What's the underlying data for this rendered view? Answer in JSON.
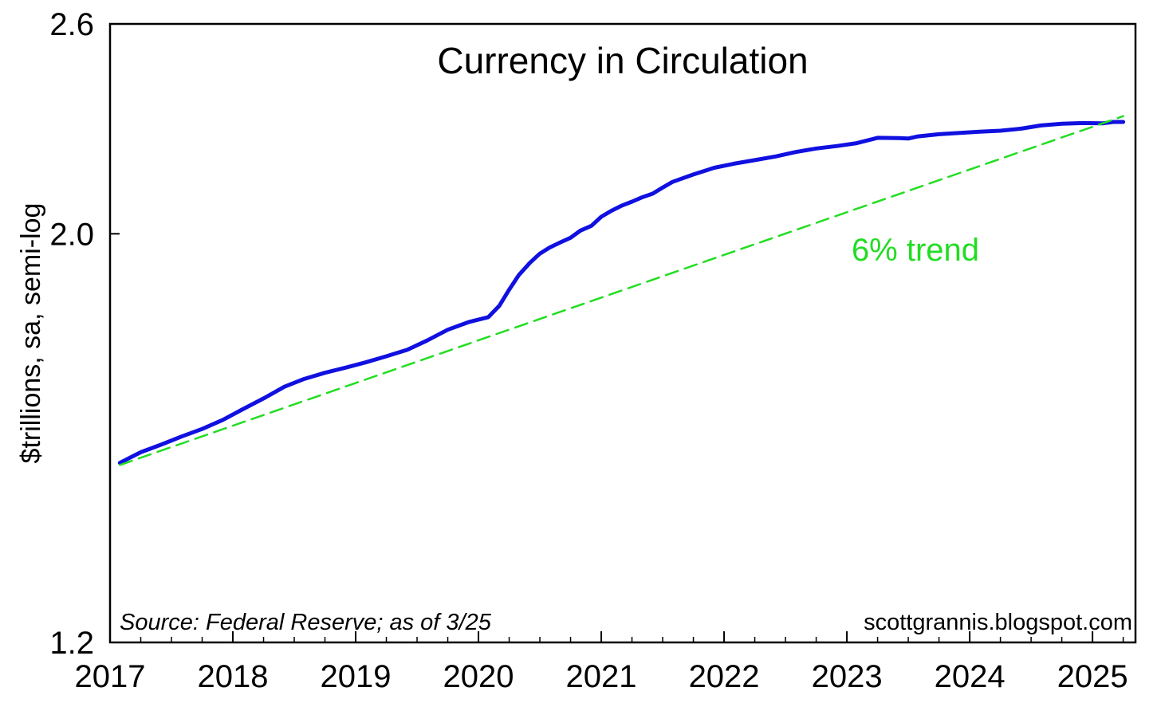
{
  "chart_data": {
    "type": "line",
    "title": "Currency in Circulation",
    "ylabel": "$trillions, sa, semi-log",
    "xlabel": "",
    "y_scale": "log",
    "ylim": [
      1.2,
      2.6
    ],
    "xlim": [
      2017.0,
      2025.35
    ],
    "y_ticks": [
      1.2,
      2.0,
      2.6
    ],
    "y_tick_labels": [
      "1.2",
      "2.0",
      "2.6"
    ],
    "x_ticks": [
      2017,
      2018,
      2019,
      2020,
      2021,
      2022,
      2023,
      2024,
      2025
    ],
    "x_tick_labels": [
      "2017",
      "2018",
      "2019",
      "2020",
      "2021",
      "2022",
      "2023",
      "2024",
      "2025"
    ],
    "grid": false,
    "source_note": "Source: Federal Reserve; as of 3/25",
    "credit": "scottgrannis.blogspot.com",
    "series": [
      {
        "color": "#1010e0",
        "style": "solid",
        "x": [
          2017.08,
          2017.25,
          2017.42,
          2017.58,
          2017.75,
          2017.92,
          2018.08,
          2018.25,
          2018.42,
          2018.58,
          2018.75,
          2018.92,
          2019.08,
          2019.25,
          2019.42,
          2019.58,
          2019.75,
          2019.92,
          2020.08,
          2020.17,
          2020.25,
          2020.33,
          2020.42,
          2020.5,
          2020.58,
          2020.67,
          2020.75,
          2020.83,
          2020.92,
          2021.0,
          2021.08,
          2021.17,
          2021.25,
          2021.33,
          2021.42,
          2021.5,
          2021.58,
          2021.75,
          2021.92,
          2022.08,
          2022.25,
          2022.42,
          2022.58,
          2022.75,
          2022.92,
          2023.08,
          2023.25,
          2023.42,
          2023.5,
          2023.58,
          2023.75,
          2023.92,
          2024.08,
          2024.25,
          2024.42,
          2024.58,
          2024.75,
          2024.92,
          2025.08,
          2025.17,
          2025.25
        ],
        "y": [
          1.502,
          1.522,
          1.537,
          1.552,
          1.567,
          1.585,
          1.606,
          1.628,
          1.652,
          1.668,
          1.681,
          1.692,
          1.703,
          1.716,
          1.73,
          1.75,
          1.774,
          1.791,
          1.802,
          1.828,
          1.865,
          1.9,
          1.929,
          1.951,
          1.966,
          1.979,
          1.99,
          2.008,
          2.02,
          2.043,
          2.058,
          2.072,
          2.082,
          2.093,
          2.103,
          2.119,
          2.134,
          2.154,
          2.172,
          2.183,
          2.193,
          2.203,
          2.215,
          2.225,
          2.232,
          2.24,
          2.255,
          2.254,
          2.253,
          2.259,
          2.265,
          2.269,
          2.272,
          2.275,
          2.281,
          2.29,
          2.295,
          2.297,
          2.296,
          2.3,
          2.3
        ]
      },
      {
        "color": "#22dd22",
        "style": "dashed",
        "label": "6% trend",
        "x": [
          2017.08,
          2025.25
        ],
        "y": [
          1.498,
          2.317
        ]
      }
    ]
  }
}
